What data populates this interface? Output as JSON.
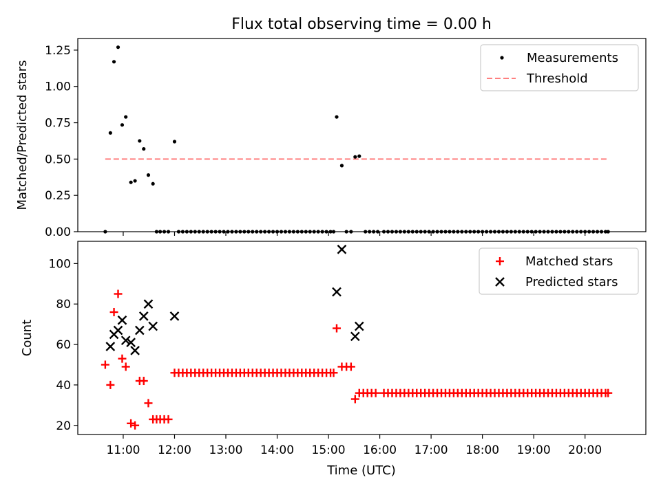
{
  "title": "Flux total observing time = 0.00 h",
  "colors": {
    "measure": "#000000",
    "threshold": "#ff7f7f",
    "matched": "#ff0000",
    "predicted": "#000000"
  },
  "chart_data": [
    {
      "type": "scatter",
      "ylabel": "Matched/Predicted stars",
      "ylim": [
        0,
        1.33
      ],
      "xlim": [
        10.115,
        21.185
      ],
      "yticks": [
        "0.00",
        "0.25",
        "0.50",
        "0.75",
        "1.00",
        "1.25"
      ],
      "ytick_values": [
        0,
        0.25,
        0.5,
        0.75,
        1.0,
        1.25
      ],
      "threshold": 0.5,
      "threshold_range": [
        10.65,
        20.45
      ],
      "legend": {
        "placement": "top-right",
        "entries": [
          "Measurements",
          "Threshold"
        ]
      },
      "points": [
        [
          10.65,
          0
        ],
        [
          10.75,
          0.68
        ],
        [
          10.82,
          1.17
        ],
        [
          10.9,
          1.27
        ],
        [
          10.98,
          0.735
        ],
        [
          11.05,
          0.79
        ],
        [
          11.15,
          0.34
        ],
        [
          11.23,
          0.35
        ],
        [
          11.32,
          0.625
        ],
        [
          11.4,
          0.57
        ],
        [
          11.49,
          0.39
        ],
        [
          11.58,
          0.33
        ],
        [
          12.0,
          0.62
        ],
        [
          11.65,
          0
        ],
        [
          11.72,
          0
        ],
        [
          11.8,
          0
        ],
        [
          11.88,
          0
        ],
        [
          12.08,
          0
        ],
        [
          12.16,
          0
        ],
        [
          12.24,
          0
        ],
        [
          12.32,
          0
        ],
        [
          12.4,
          0
        ],
        [
          12.48,
          0
        ],
        [
          12.56,
          0
        ],
        [
          12.64,
          0
        ],
        [
          12.72,
          0
        ],
        [
          12.8,
          0
        ],
        [
          12.88,
          0
        ],
        [
          12.96,
          0
        ],
        [
          13.04,
          0
        ],
        [
          13.12,
          0
        ],
        [
          13.2,
          0
        ],
        [
          13.28,
          0
        ],
        [
          13.36,
          0
        ],
        [
          13.44,
          0
        ],
        [
          13.52,
          0
        ],
        [
          13.6,
          0
        ],
        [
          13.68,
          0
        ],
        [
          13.76,
          0
        ],
        [
          13.84,
          0
        ],
        [
          13.92,
          0
        ],
        [
          14.0,
          0
        ],
        [
          14.08,
          0
        ],
        [
          14.16,
          0
        ],
        [
          14.24,
          0
        ],
        [
          14.32,
          0
        ],
        [
          14.4,
          0
        ],
        [
          14.48,
          0
        ],
        [
          14.56,
          0
        ],
        [
          14.64,
          0
        ],
        [
          14.72,
          0
        ],
        [
          14.8,
          0
        ],
        [
          14.88,
          0
        ],
        [
          14.96,
          0
        ],
        [
          15.04,
          0
        ],
        [
          15.1,
          0
        ],
        [
          15.16,
          0.79
        ],
        [
          15.26,
          0.455
        ],
        [
          15.52,
          0.515
        ],
        [
          15.6,
          0.52
        ],
        [
          15.35,
          0
        ],
        [
          15.44,
          0
        ],
        [
          15.72,
          0
        ],
        [
          15.8,
          0
        ],
        [
          15.88,
          0
        ],
        [
          15.96,
          0
        ],
        [
          16.08,
          0
        ],
        [
          16.16,
          0
        ],
        [
          16.24,
          0
        ],
        [
          16.32,
          0
        ],
        [
          16.4,
          0
        ],
        [
          16.48,
          0
        ],
        [
          16.56,
          0
        ],
        [
          16.64,
          0
        ],
        [
          16.72,
          0
        ],
        [
          16.8,
          0
        ],
        [
          16.88,
          0
        ],
        [
          16.96,
          0
        ],
        [
          17.04,
          0
        ],
        [
          17.12,
          0
        ],
        [
          17.2,
          0
        ],
        [
          17.28,
          0
        ],
        [
          17.36,
          0
        ],
        [
          17.44,
          0
        ],
        [
          17.52,
          0
        ],
        [
          17.6,
          0
        ],
        [
          17.68,
          0
        ],
        [
          17.76,
          0
        ],
        [
          17.84,
          0
        ],
        [
          17.92,
          0
        ],
        [
          18.0,
          0
        ],
        [
          18.08,
          0
        ],
        [
          18.16,
          0
        ],
        [
          18.24,
          0
        ],
        [
          18.32,
          0
        ],
        [
          18.4,
          0
        ],
        [
          18.48,
          0
        ],
        [
          18.56,
          0
        ],
        [
          18.64,
          0
        ],
        [
          18.72,
          0
        ],
        [
          18.8,
          0
        ],
        [
          18.88,
          0
        ],
        [
          18.96,
          0
        ],
        [
          19.04,
          0
        ],
        [
          19.12,
          0
        ],
        [
          19.2,
          0
        ],
        [
          19.28,
          0
        ],
        [
          19.36,
          0
        ],
        [
          19.44,
          0
        ],
        [
          19.52,
          0
        ],
        [
          19.6,
          0
        ],
        [
          19.68,
          0
        ],
        [
          19.76,
          0
        ],
        [
          19.84,
          0
        ],
        [
          19.92,
          0
        ],
        [
          20.0,
          0
        ],
        [
          20.08,
          0
        ],
        [
          20.16,
          0
        ],
        [
          20.24,
          0
        ],
        [
          20.32,
          0
        ],
        [
          20.4,
          0
        ],
        [
          20.45,
          0
        ]
      ]
    },
    {
      "type": "scatter",
      "xlabel": "Time (UTC)",
      "ylabel": "Count",
      "ylim": [
        15.5,
        111
      ],
      "xlim": [
        10.115,
        21.185
      ],
      "yticks": [
        "20",
        "40",
        "60",
        "80",
        "100"
      ],
      "ytick_values": [
        20,
        40,
        60,
        80,
        100
      ],
      "xticks": [
        "11:00",
        "12:00",
        "13:00",
        "14:00",
        "15:00",
        "16:00",
        "17:00",
        "18:00",
        "19:00",
        "20:00"
      ],
      "xtick_values": [
        11,
        12,
        13,
        14,
        15,
        16,
        17,
        18,
        19,
        20
      ],
      "legend": {
        "placement": "top-right",
        "entries": [
          "Matched stars",
          "Predicted stars"
        ]
      },
      "series": [
        {
          "name": "Matched stars",
          "points": [
            [
              10.65,
              50
            ],
            [
              10.75,
              40
            ],
            [
              10.82,
              76
            ],
            [
              10.9,
              85
            ],
            [
              10.98,
              53
            ],
            [
              11.05,
              49
            ],
            [
              11.15,
              21
            ],
            [
              11.23,
              20
            ],
            [
              11.32,
              42
            ],
            [
              11.4,
              42
            ],
            [
              11.49,
              31
            ],
            [
              11.58,
              23
            ],
            [
              11.65,
              23
            ],
            [
              11.72,
              23
            ],
            [
              11.8,
              23
            ],
            [
              11.88,
              23
            ],
            [
              12.0,
              46
            ],
            [
              12.08,
              46
            ],
            [
              12.16,
              46
            ],
            [
              12.24,
              46
            ],
            [
              12.32,
              46
            ],
            [
              12.4,
              46
            ],
            [
              12.48,
              46
            ],
            [
              12.56,
              46
            ],
            [
              12.64,
              46
            ],
            [
              12.72,
              46
            ],
            [
              12.8,
              46
            ],
            [
              12.88,
              46
            ],
            [
              12.96,
              46
            ],
            [
              13.04,
              46
            ],
            [
              13.12,
              46
            ],
            [
              13.2,
              46
            ],
            [
              13.28,
              46
            ],
            [
              13.36,
              46
            ],
            [
              13.44,
              46
            ],
            [
              13.52,
              46
            ],
            [
              13.6,
              46
            ],
            [
              13.68,
              46
            ],
            [
              13.76,
              46
            ],
            [
              13.84,
              46
            ],
            [
              13.92,
              46
            ],
            [
              14.0,
              46
            ],
            [
              14.08,
              46
            ],
            [
              14.16,
              46
            ],
            [
              14.24,
              46
            ],
            [
              14.32,
              46
            ],
            [
              14.4,
              46
            ],
            [
              14.48,
              46
            ],
            [
              14.56,
              46
            ],
            [
              14.64,
              46
            ],
            [
              14.72,
              46
            ],
            [
              14.8,
              46
            ],
            [
              14.88,
              46
            ],
            [
              14.96,
              46
            ],
            [
              15.04,
              46
            ],
            [
              15.1,
              46
            ],
            [
              15.16,
              68
            ],
            [
              15.26,
              49
            ],
            [
              15.35,
              49
            ],
            [
              15.44,
              49
            ],
            [
              15.52,
              33
            ],
            [
              15.6,
              36
            ],
            [
              15.68,
              36
            ],
            [
              15.76,
              36
            ],
            [
              15.84,
              36
            ],
            [
              15.92,
              36
            ],
            [
              16.08,
              36
            ],
            [
              16.16,
              36
            ],
            [
              16.24,
              36
            ],
            [
              16.32,
              36
            ],
            [
              16.4,
              36
            ],
            [
              16.48,
              36
            ],
            [
              16.56,
              36
            ],
            [
              16.64,
              36
            ],
            [
              16.72,
              36
            ],
            [
              16.8,
              36
            ],
            [
              16.88,
              36
            ],
            [
              16.96,
              36
            ],
            [
              17.04,
              36
            ],
            [
              17.12,
              36
            ],
            [
              17.2,
              36
            ],
            [
              17.28,
              36
            ],
            [
              17.36,
              36
            ],
            [
              17.44,
              36
            ],
            [
              17.52,
              36
            ],
            [
              17.6,
              36
            ],
            [
              17.68,
              36
            ],
            [
              17.76,
              36
            ],
            [
              17.84,
              36
            ],
            [
              17.92,
              36
            ],
            [
              18.0,
              36
            ],
            [
              18.08,
              36
            ],
            [
              18.16,
              36
            ],
            [
              18.24,
              36
            ],
            [
              18.32,
              36
            ],
            [
              18.4,
              36
            ],
            [
              18.48,
              36
            ],
            [
              18.56,
              36
            ],
            [
              18.64,
              36
            ],
            [
              18.72,
              36
            ],
            [
              18.8,
              36
            ],
            [
              18.88,
              36
            ],
            [
              18.96,
              36
            ],
            [
              19.04,
              36
            ],
            [
              19.12,
              36
            ],
            [
              19.2,
              36
            ],
            [
              19.28,
              36
            ],
            [
              19.36,
              36
            ],
            [
              19.44,
              36
            ],
            [
              19.52,
              36
            ],
            [
              19.6,
              36
            ],
            [
              19.68,
              36
            ],
            [
              19.76,
              36
            ],
            [
              19.84,
              36
            ],
            [
              19.92,
              36
            ],
            [
              20.0,
              36
            ],
            [
              20.08,
              36
            ],
            [
              20.16,
              36
            ],
            [
              20.24,
              36
            ],
            [
              20.32,
              36
            ],
            [
              20.4,
              36
            ],
            [
              20.45,
              36
            ]
          ]
        },
        {
          "name": "Predicted stars",
          "points": [
            [
              10.75,
              59
            ],
            [
              10.82,
              65
            ],
            [
              10.9,
              67
            ],
            [
              10.98,
              72
            ],
            [
              11.05,
              62
            ],
            [
              11.15,
              61
            ],
            [
              11.23,
              57
            ],
            [
              11.32,
              67
            ],
            [
              11.4,
              74
            ],
            [
              11.49,
              80
            ],
            [
              11.58,
              69
            ],
            [
              12.0,
              74
            ],
            [
              15.16,
              86
            ],
            [
              15.26,
              107
            ],
            [
              15.52,
              64
            ],
            [
              15.6,
              69
            ]
          ]
        }
      ]
    }
  ]
}
